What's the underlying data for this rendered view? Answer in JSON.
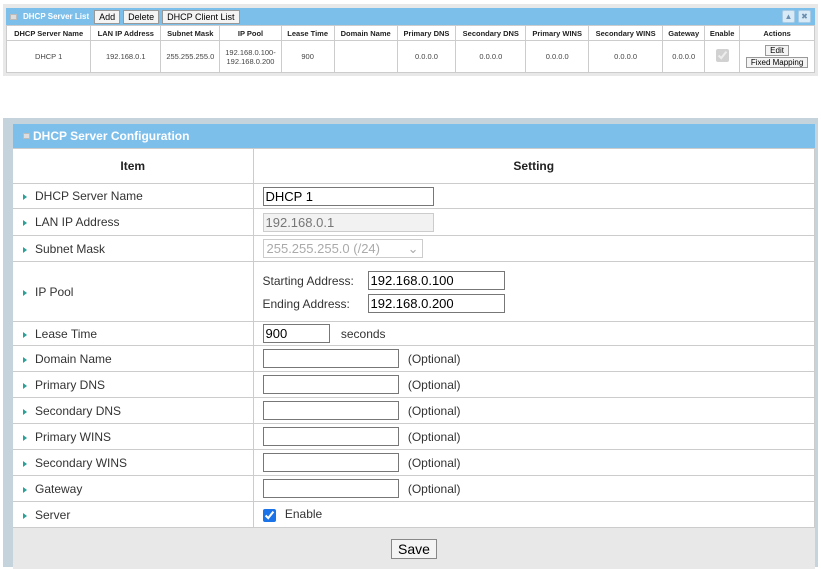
{
  "list": {
    "title": "DHCP Server List",
    "buttons": [
      "Add",
      "Delete",
      "DHCP Client List"
    ],
    "columns": [
      "DHCP Server Name",
      "LAN IP Address",
      "Subnet Mask",
      "IP Pool",
      "Lease Time",
      "Domain Name",
      "Primary DNS",
      "Secondary DNS",
      "Primary WINS",
      "Secondary WINS",
      "Gateway",
      "Enable",
      "Actions"
    ],
    "row": {
      "name": "DHCP 1",
      "lan_ip": "192.168.0.1",
      "mask": "255.255.255.0",
      "pool_start": "192.168.0.100-",
      "pool_end": "192.168.0.200",
      "lease": "900",
      "domain": "",
      "pdns": "0.0.0.0",
      "sdns": "0.0.0.0",
      "pwins": "0.0.0.0",
      "swins": "0.0.0.0",
      "gateway": "0.0.0.0",
      "enabled": true,
      "edit": "Edit",
      "fixed": "Fixed Mapping"
    }
  },
  "config": {
    "title": "DHCP Server Configuration",
    "col_item": "Item",
    "col_setting": "Setting",
    "labels": {
      "name": "DHCP Server Name",
      "lan": "LAN IP Address",
      "mask": "Subnet Mask",
      "pool": "IP Pool",
      "lease": "Lease Time",
      "domain": "Domain Name",
      "pdns": "Primary DNS",
      "sdns": "Secondary DNS",
      "pwins": "Primary WINS",
      "swins": "Secondary WINS",
      "gateway": "Gateway",
      "server": "Server"
    },
    "values": {
      "name": "DHCP 1",
      "lan": "192.168.0.1",
      "mask": "255.255.255.0 (/24)",
      "start": "192.168.0.100",
      "end": "192.168.0.200",
      "lease": "900"
    },
    "start_label": "Starting Address:",
    "end_label": "Ending Address:",
    "seconds": "seconds",
    "optional": "(Optional)",
    "enable": "Enable",
    "server_enabled": true,
    "save": "Save"
  },
  "colors": {
    "header": "#7dbfeb",
    "accent": "#2aa198"
  }
}
